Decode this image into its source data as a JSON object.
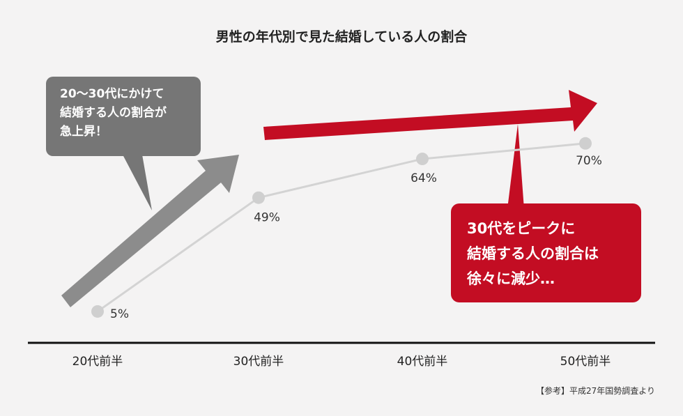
{
  "chart_data": {
    "type": "line",
    "title": "男性の年代別で見た結婚している人の割合",
    "categories": [
      "20代前半",
      "30代前半",
      "40代前半",
      "50代前半"
    ],
    "values": [
      5,
      49,
      64,
      70
    ],
    "data_labels": [
      "5%",
      "49%",
      "64%",
      "70%"
    ],
    "ylim": [
      0,
      100
    ],
    "grid": false,
    "colors": {
      "line": "#d3d3d3",
      "marker": "#cfcfcf",
      "gray_arrow": "#8c8c8c",
      "red_arrow": "#c30d23",
      "gray_callout": "#767676",
      "red_callout": "#c30d23",
      "axis": "#111111",
      "background": "#f4f3f3"
    },
    "annotations": {
      "gray_callout": "20〜30代にかけて\n結婚する人の割合が\n急上昇！",
      "red_callout": "30代をピークに\n結婚する人の割合は\n徐々に減少…"
    }
  },
  "source_note": "【参考】平成27年国勢調査より"
}
